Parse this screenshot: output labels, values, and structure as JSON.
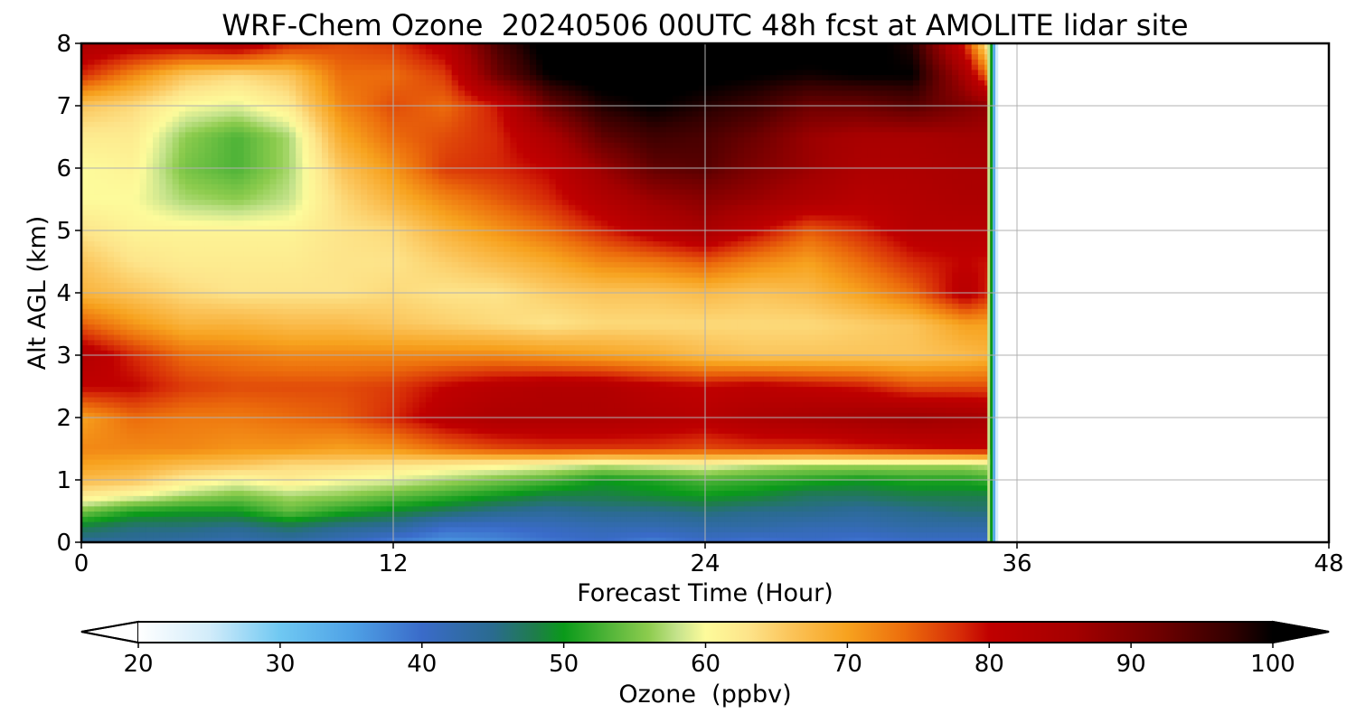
{
  "chart_data": {
    "type": "heatmap",
    "title": "WRF-Chem Ozone  20240506 00UTC 48h fcst at AMOLITE lidar site",
    "xlabel": "Forecast Time (Hour)",
    "ylabel": "Alt AGL (km)",
    "xlim": [
      0,
      48
    ],
    "ylim": [
      0,
      8
    ],
    "xticks": [
      0,
      12,
      24,
      36,
      48
    ],
    "yticks": [
      0,
      1,
      2,
      3,
      4,
      5,
      6,
      7,
      8
    ],
    "grid": true,
    "data_extent_hours": [
      0,
      35
    ],
    "x": [
      0,
      2,
      4,
      6,
      8,
      10,
      12,
      14,
      16,
      18,
      20,
      22,
      24,
      26,
      28,
      30,
      32,
      34,
      35
    ],
    "y": [
      0,
      0.25,
      0.5,
      0.75,
      1,
      1.25,
      1.5,
      2,
      2.5,
      3,
      3.5,
      4,
      4.5,
      5,
      5.5,
      6,
      6.5,
      7,
      7.5,
      8
    ],
    "z": [
      [
        44,
        44,
        43,
        42,
        43,
        41,
        38,
        36,
        37,
        39,
        40,
        38,
        40,
        39,
        40,
        39,
        40,
        40,
        40
      ],
      [
        48,
        46,
        46,
        45,
        47,
        45,
        44,
        40,
        40,
        41,
        42,
        42,
        43,
        43,
        42,
        42,
        43,
        43,
        43
      ],
      [
        55,
        51,
        50,
        50,
        54,
        51,
        49,
        47,
        45,
        44,
        45,
        45,
        46,
        45,
        45,
        44,
        45,
        46,
        46
      ],
      [
        62,
        60,
        57,
        55,
        57,
        56,
        54,
        52,
        50,
        48,
        48,
        49,
        50,
        49,
        47,
        47,
        48,
        48,
        48
      ],
      [
        67,
        66,
        62,
        60,
        62,
        60,
        59,
        57,
        55,
        53,
        50,
        51,
        53,
        52,
        51,
        50,
        51,
        51,
        52
      ],
      [
        70,
        69,
        67,
        66,
        64,
        64,
        63,
        62,
        61,
        60,
        58,
        59,
        60,
        58,
        57,
        57,
        57,
        57,
        58
      ],
      [
        72,
        72,
        72,
        71,
        71,
        70,
        71,
        74,
        76,
        77,
        77,
        77,
        76,
        77,
        77,
        78,
        79,
        80,
        80
      ],
      [
        70,
        74,
        73,
        73,
        74,
        75,
        78,
        82,
        84,
        84,
        84,
        83,
        82,
        84,
        85,
        86,
        87,
        86,
        85
      ],
      [
        80,
        80,
        77,
        76,
        76,
        76,
        77,
        80,
        82,
        83,
        83,
        81,
        80,
        81,
        80,
        79,
        76,
        76,
        76
      ],
      [
        83,
        78,
        74,
        73,
        72,
        72,
        72,
        72,
        72,
        71,
        70,
        69,
        67,
        66,
        66,
        66,
        66,
        67,
        68
      ],
      [
        75,
        71,
        68,
        68,
        67,
        67,
        66,
        65,
        64,
        63,
        64,
        64,
        64,
        64,
        64,
        65,
        66,
        70,
        70
      ],
      [
        68,
        66,
        64,
        63,
        63,
        63,
        64,
        63,
        63,
        65,
        66,
        66,
        67,
        66,
        67,
        70,
        74,
        82,
        78
      ],
      [
        66,
        63,
        62,
        62,
        62,
        63,
        63,
        65,
        67,
        69,
        72,
        73,
        75,
        72,
        70,
        74,
        78,
        80,
        79
      ],
      [
        63,
        61,
        61,
        61,
        61,
        63,
        64,
        68,
        71,
        74,
        78,
        82,
        85,
        80,
        75,
        78,
        82,
        82,
        82
      ],
      [
        60,
        60,
        57,
        56,
        58,
        64,
        68,
        72,
        75,
        78,
        83,
        87,
        89,
        87,
        84,
        82,
        83,
        84,
        84
      ],
      [
        60,
        61,
        55,
        53,
        57,
        66,
        71,
        77,
        78,
        80,
        87,
        93,
        94,
        90,
        87,
        84,
        84,
        85,
        85
      ],
      [
        62,
        62,
        56,
        53,
        57,
        69,
        74,
        76,
        78,
        84,
        93,
        96,
        95,
        92,
        87,
        85,
        85,
        86,
        86
      ],
      [
        66,
        64,
        60,
        59,
        62,
        72,
        76,
        74,
        79,
        92,
        98,
        100,
        98,
        96,
        92,
        92,
        94,
        90,
        88
      ],
      [
        78,
        72,
        66,
        64,
        66,
        74,
        74,
        77,
        92,
        100,
        102,
        102,
        101,
        100,
        99,
        100,
        100,
        85,
        72
      ],
      [
        84,
        82,
        82,
        84,
        78,
        76,
        77,
        82,
        95,
        102,
        104,
        104,
        103,
        102,
        102,
        102,
        98,
        78,
        60
      ]
    ],
    "colorbar": {
      "label": "Ozone  (ppbv)",
      "min": 20,
      "max": 100,
      "ticks": [
        20,
        30,
        40,
        50,
        60,
        70,
        80,
        90,
        100
      ],
      "extend": "both",
      "colormap_stops": [
        [
          20,
          "#ffffff"
        ],
        [
          25,
          "#d2ecfa"
        ],
        [
          30,
          "#6fc8f2"
        ],
        [
          35,
          "#4fa2e6"
        ],
        [
          40,
          "#3a6bc9"
        ],
        [
          45,
          "#2a6b8f"
        ],
        [
          48,
          "#1e7d4a"
        ],
        [
          50,
          "#0a9a1a"
        ],
        [
          53,
          "#4db337"
        ],
        [
          56,
          "#8dcc4e"
        ],
        [
          58,
          "#c5e38c"
        ],
        [
          60,
          "#fdfb9b"
        ],
        [
          63,
          "#fde48a"
        ],
        [
          66,
          "#fbc45a"
        ],
        [
          70,
          "#f7a21e"
        ],
        [
          74,
          "#ec6d0c"
        ],
        [
          78,
          "#d62a07"
        ],
        [
          80,
          "#c00000"
        ],
        [
          86,
          "#a40000"
        ],
        [
          92,
          "#6e0000"
        ],
        [
          97,
          "#330000"
        ],
        [
          100,
          "#000000"
        ]
      ]
    }
  }
}
